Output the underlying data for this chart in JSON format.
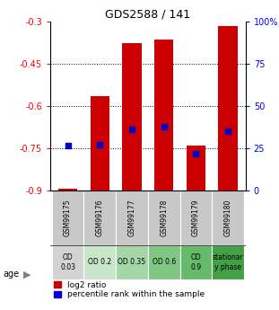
{
  "title": "GDS2588 / 141",
  "samples": [
    "GSM99175",
    "GSM99176",
    "GSM99177",
    "GSM99178",
    "GSM99179",
    "GSM99180"
  ],
  "bar_tops": [
    -0.895,
    -0.565,
    -0.375,
    -0.365,
    -0.742,
    -0.315
  ],
  "bar_bottom": -0.9,
  "blue_log2": [
    -0.742,
    -0.738,
    -0.682,
    -0.672,
    -0.77,
    -0.69
  ],
  "ylim_left": [
    -0.9,
    -0.3
  ],
  "ylim_right": [
    0,
    100
  ],
  "yticks_left": [
    -0.9,
    -0.75,
    -0.6,
    -0.45,
    -0.3
  ],
  "yticks_right": [
    0,
    25,
    50,
    75,
    100
  ],
  "ytick_labels_right": [
    "0",
    "25",
    "50",
    "75",
    "100%"
  ],
  "grid_lines": [
    -0.45,
    -0.6,
    -0.75
  ],
  "age_labels": [
    "OD\n0.03",
    "OD 0.2",
    "OD 0.35",
    "OD 0.6",
    "OD\n0.9",
    "stationar\ny phase"
  ],
  "age_bg_colors": [
    "#d3d3d3",
    "#c8e6c9",
    "#a5d6a7",
    "#81c784",
    "#66bb6a",
    "#43a047"
  ],
  "sample_bg_color": "#c8c8c8",
  "bar_color": "#cc0000",
  "blue_color": "#0000cc",
  "bar_width": 0.6,
  "title_fontsize": 9,
  "tick_fontsize": 7,
  "label_fontsize": 5.5,
  "legend_fontsize": 6.5
}
